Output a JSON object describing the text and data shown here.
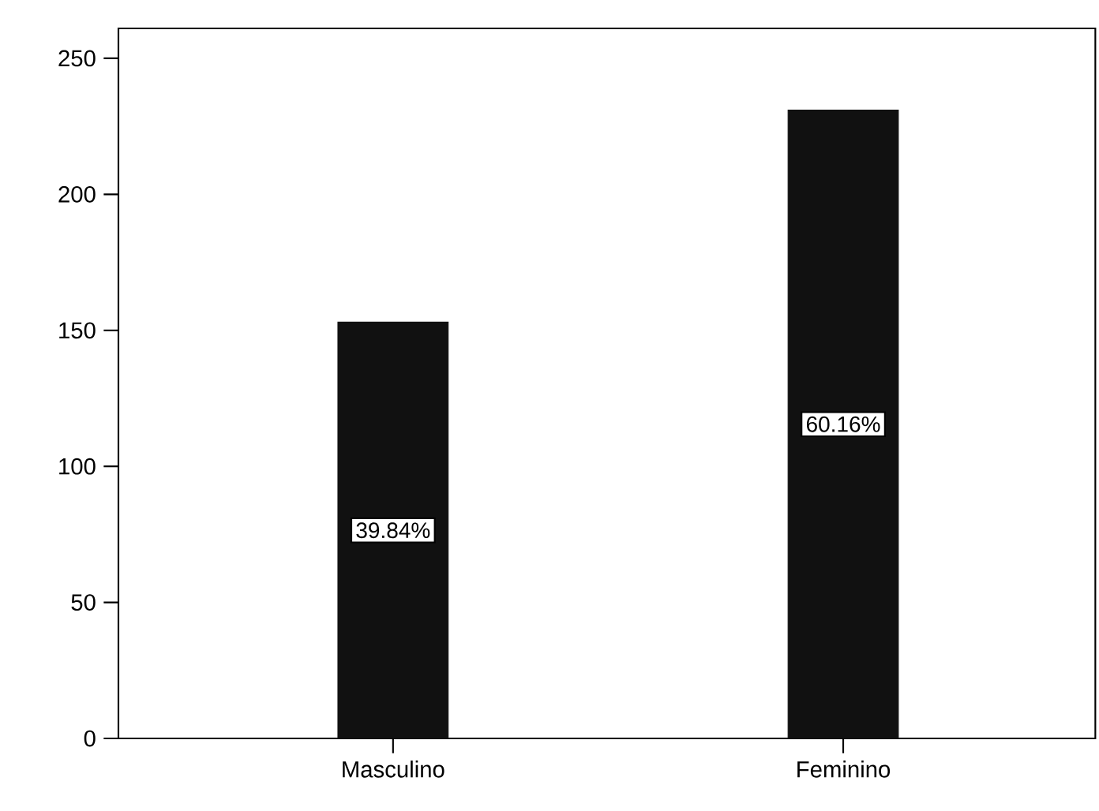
{
  "chart_data": {
    "type": "bar",
    "categories": [
      "Masculino",
      "Feminino"
    ],
    "values": [
      153,
      231
    ],
    "annotations": [
      "39.84%",
      "60.16%"
    ],
    "color": "#111111",
    "ylim": [
      0,
      261
    ],
    "yticks": [
      0,
      50,
      100,
      150,
      200,
      250
    ]
  }
}
